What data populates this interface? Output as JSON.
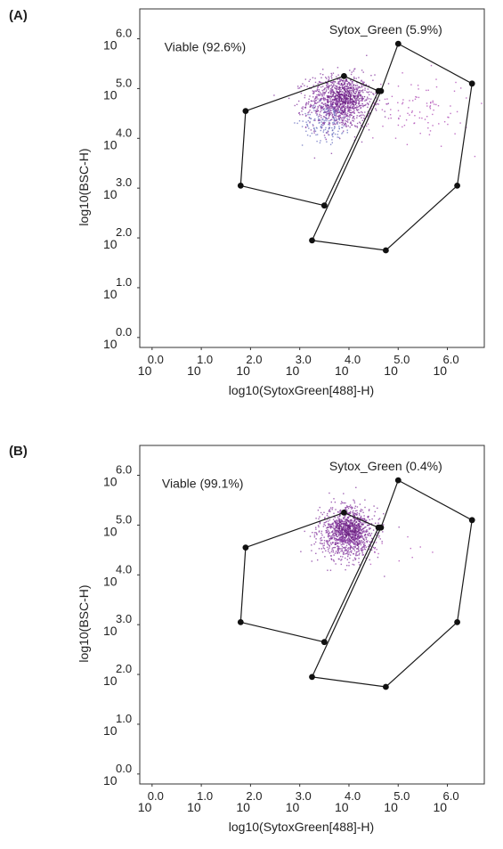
{
  "chart_data": [
    {
      "type": "scatter",
      "panel_label": "(A)",
      "xlabel": "log10(SytoxGreen[488]-H)",
      "ylabel": "log10(BSC-H)",
      "xlim": [
        -0.25,
        6.75
      ],
      "ylim": [
        -0.2,
        6.6
      ],
      "x_ticks": [
        {
          "base": "10",
          "exp": "0.0"
        },
        {
          "base": "10",
          "exp": "1.0"
        },
        {
          "base": "10",
          "exp": "2.0"
        },
        {
          "base": "10",
          "exp": "3.0"
        },
        {
          "base": "10",
          "exp": "4.0"
        },
        {
          "base": "10",
          "exp": "5.0"
        },
        {
          "base": "10",
          "exp": "6.0"
        }
      ],
      "y_ticks": [
        {
          "base": "10",
          "exp": "0.0"
        },
        {
          "base": "10",
          "exp": "1.0"
        },
        {
          "base": "10",
          "exp": "2.0"
        },
        {
          "base": "10",
          "exp": "3.0"
        },
        {
          "base": "10",
          "exp": "4.0"
        },
        {
          "base": "10",
          "exp": "5.0"
        },
        {
          "base": "10",
          "exp": "6.0"
        }
      ],
      "gates": [
        {
          "label": "Viable (92.6%)",
          "label_pos": [
            0.25,
            5.75
          ],
          "vertices": [
            [
              1.9,
              4.55
            ],
            [
              3.9,
              5.25
            ],
            [
              4.6,
              4.95
            ],
            [
              3.5,
              2.65
            ],
            [
              1.8,
              3.05
            ]
          ]
        },
        {
          "label": "Sytox_Green (5.9%)",
          "label_pos": [
            3.6,
            6.1
          ],
          "vertices": [
            [
              5.0,
              5.9
            ],
            [
              6.5,
              5.1
            ],
            [
              6.2,
              3.05
            ],
            [
              4.75,
              1.75
            ],
            [
              3.25,
              1.95
            ],
            [
              4.65,
              4.95
            ]
          ]
        }
      ],
      "populations": [
        {
          "center": [
            3.8,
            4.75
          ],
          "spread": [
            0.33,
            0.27
          ],
          "count": 1050,
          "color": "#8a3fa3"
        },
        {
          "center": [
            3.55,
            4.35
          ],
          "spread": [
            0.25,
            0.2
          ],
          "count": 160,
          "color": "#6f76c2"
        },
        {
          "center": [
            3.9,
            4.85
          ],
          "spread": [
            0.18,
            0.14
          ],
          "count": 200,
          "color": "#6a1f80"
        },
        {
          "center": [
            5.3,
            4.6
          ],
          "spread": [
            0.6,
            0.33
          ],
          "count": 110,
          "color": "#b04fb6"
        }
      ]
    },
    {
      "type": "scatter",
      "panel_label": "(B)",
      "xlabel": "log10(SytoxGreen[488]-H)",
      "ylabel": "log10(BSC-H)",
      "xlim": [
        -0.25,
        6.75
      ],
      "ylim": [
        -0.2,
        6.6
      ],
      "x_ticks": [
        {
          "base": "10",
          "exp": "0.0"
        },
        {
          "base": "10",
          "exp": "1.0"
        },
        {
          "base": "10",
          "exp": "2.0"
        },
        {
          "base": "10",
          "exp": "3.0"
        },
        {
          "base": "10",
          "exp": "4.0"
        },
        {
          "base": "10",
          "exp": "5.0"
        },
        {
          "base": "10",
          "exp": "6.0"
        }
      ],
      "y_ticks": [
        {
          "base": "10",
          "exp": "0.0"
        },
        {
          "base": "10",
          "exp": "1.0"
        },
        {
          "base": "10",
          "exp": "2.0"
        },
        {
          "base": "10",
          "exp": "3.0"
        },
        {
          "base": "10",
          "exp": "4.0"
        },
        {
          "base": "10",
          "exp": "5.0"
        },
        {
          "base": "10",
          "exp": "6.0"
        }
      ],
      "gates": [
        {
          "label": "Viable (99.1%)",
          "label_pos": [
            0.2,
            5.75
          ],
          "vertices": [
            [
              1.9,
              4.55
            ],
            [
              3.9,
              5.25
            ],
            [
              4.6,
              4.95
            ],
            [
              3.5,
              2.65
            ],
            [
              1.8,
              3.05
            ]
          ]
        },
        {
          "label": "Sytox_Green (0.4%)",
          "label_pos": [
            3.6,
            6.1
          ],
          "vertices": [
            [
              5.0,
              5.9
            ],
            [
              6.5,
              5.1
            ],
            [
              6.2,
              3.05
            ],
            [
              4.75,
              1.75
            ],
            [
              3.25,
              1.95
            ],
            [
              4.65,
              4.95
            ]
          ]
        }
      ],
      "populations": [
        {
          "center": [
            3.95,
            4.85
          ],
          "spread": [
            0.28,
            0.26
          ],
          "count": 1050,
          "color": "#8a3fa3"
        },
        {
          "center": [
            4.0,
            4.95
          ],
          "spread": [
            0.15,
            0.13
          ],
          "count": 220,
          "color": "#6a1f80"
        },
        {
          "center": [
            4.7,
            4.6
          ],
          "spread": [
            0.45,
            0.25
          ],
          "count": 14,
          "color": "#b04fb6"
        }
      ]
    }
  ]
}
